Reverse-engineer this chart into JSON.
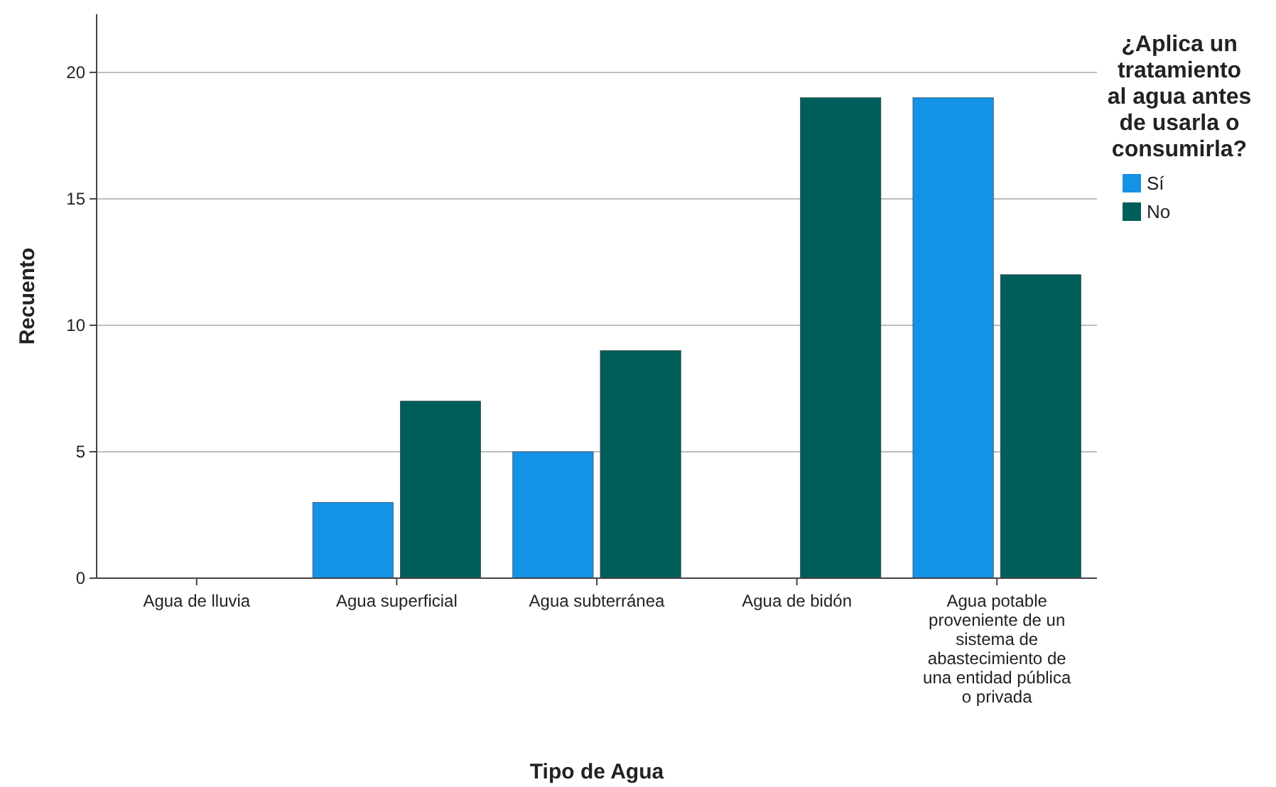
{
  "chart_data": {
    "type": "bar",
    "xlabel": "Tipo de Agua",
    "ylabel": "Recuento",
    "legend_title": "¿Aplica un tratamiento al agua antes de usarla o consumirla?",
    "categories": [
      "Agua de lluvia",
      "Agua superficial",
      "Agua subterránea",
      "Agua de bidón",
      "Agua potable proveniente de un sistema de abastecimiento de una entidad pública o privada"
    ],
    "series": [
      {
        "name": "Sí",
        "color": "#1492e6",
        "values": [
          null,
          3,
          5,
          null,
          19
        ]
      },
      {
        "name": "No",
        "color": "#005e5a",
        "values": [
          null,
          7,
          9,
          19,
          12
        ]
      }
    ],
    "ylim": [
      0,
      22.3
    ],
    "yticks": [
      0,
      5,
      10,
      15,
      20
    ],
    "grid": "y",
    "legend": "right"
  }
}
